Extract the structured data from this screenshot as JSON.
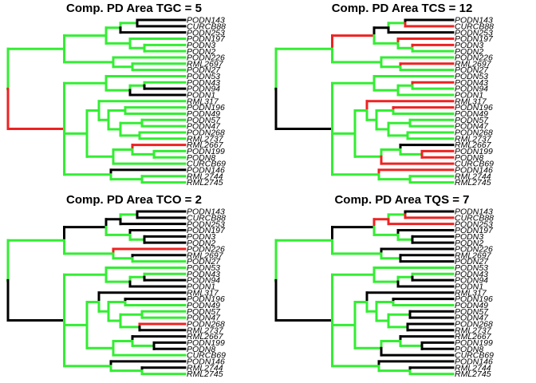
{
  "colors": {
    "green": "#33ee33",
    "red": "#ee2222",
    "black": "#000000"
  },
  "chart_data": {
    "type": "tree",
    "tips": [
      "PODN143",
      "CURCB88",
      "PODN253",
      "PODN197",
      "PODN3",
      "PODN2",
      "PODN226",
      "RML2697",
      "PODN27",
      "PODN53",
      "PODN43",
      "PODN94",
      "PODN1",
      "RML317",
      "PODN196",
      "PODN49",
      "PODN57",
      "PODN47",
      "PODN268",
      "RML2737",
      "RML2667",
      "PODN199",
      "PODN8",
      "CURCB69",
      "PODN146",
      "RML2744",
      "RML2745"
    ],
    "panels": [
      {
        "title": "Comp. PD Area TGC = 5",
        "edge_colors": {
          "black": [
            "t0",
            "t1",
            "t2",
            "t11",
            "t12",
            "t24"
          ],
          "red": [
            "n4",
            "t20"
          ]
        }
      },
      {
        "title": "Comp. PD Area TCS = 12",
        "edge_colors": {
          "red": [
            "n2",
            "t1",
            "t3",
            "t4",
            "t7",
            "t10",
            "t13",
            "t14",
            "t21",
            "t22",
            "t23",
            "t24"
          ],
          "black": [
            "t0",
            "n3",
            "t2",
            "n4",
            "t20"
          ]
        }
      },
      {
        "title": "Comp. PD Area TCO = 2",
        "edge_colors": {
          "red": [
            "t6",
            "t18"
          ],
          "black": [
            "n2",
            "t0",
            "n3",
            "t1",
            "t2",
            "t3",
            "t4",
            "t5",
            "t7",
            "t11",
            "t12",
            "n4",
            "t13",
            "t14",
            "t19",
            "t20",
            "t21",
            "t22",
            "t24",
            "t25"
          ]
        }
      },
      {
        "title": "Comp. PD Area TQS = 7",
        "edge_colors": {
          "red": [
            "n3",
            "t1",
            "t2"
          ],
          "black": [
            "n2",
            "t0",
            "t3",
            "t4",
            "t5",
            "t6",
            "t7",
            "t8",
            "t11",
            "t12",
            "n4",
            "t13",
            "t14",
            "t16",
            "t17",
            "t18",
            "t19",
            "t20",
            "t21",
            "t22",
            "t23",
            "t24",
            "t25"
          ]
        }
      }
    ]
  }
}
